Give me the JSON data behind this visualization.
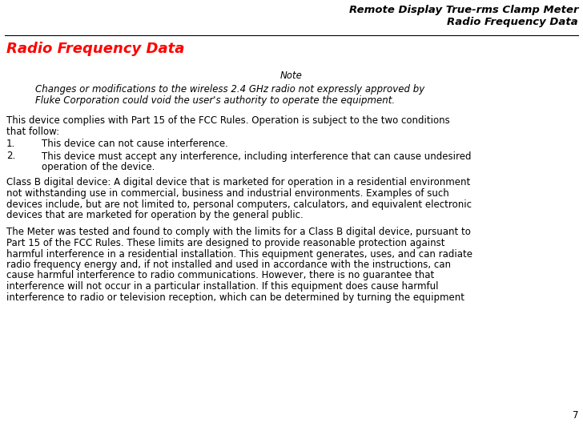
{
  "bg_color": "#ffffff",
  "header_line1": "Remote Display True-rms Clamp Meter",
  "header_line2": "Radio Frequency Data",
  "header_color": "#000000",
  "header_fontsize": 9.5,
  "section_title": "Radio Frequency Data",
  "section_title_color": "#ff0000",
  "section_title_fontsize": 13,
  "note_label": "Note",
  "note_line1": "Changes or modifications to the wireless 2.4 GHz radio not expressly approved by",
  "note_line2": "Fluke Corporation could void the user's authority to operate the equipment.",
  "body_para1_line1": "This device complies with Part 15 of the FCC Rules. Operation is subject to the two conditions",
  "body_para1_line2": "that follow:",
  "list_item1_num": "1.",
  "list_item1_text": "This device can not cause interference.",
  "list_item2_num": "2.",
  "list_item2_line1": "This device must accept any interference, including interference that can cause undesired",
  "list_item2_line2": "operation of the device.",
  "body_para2_lines": [
    "Class B digital device: A digital device that is marketed for operation in a residential environment",
    "not withstanding use in commercial, business and industrial environments. Examples of such",
    "devices include, but are not limited to, personal computers, calculators, and equivalent electronic",
    "devices that are marketed for operation by the general public."
  ],
  "body_para3_lines": [
    "The Meter was tested and found to comply with the limits for a Class B digital device, pursuant to",
    "Part 15 of the FCC Rules. These limits are designed to provide reasonable protection against",
    "harmful interference in a residential installation. This equipment generates, uses, and can radiate",
    "radio frequency energy and, if not installed and used in accordance with the instructions, can",
    "cause harmful interference to radio communications. However, there is no guarantee that",
    "interference will not occur in a particular installation. If this equipment does cause harmful",
    "interference to radio or television reception, which can be determined by turning the equipment"
  ],
  "page_number": "7",
  "body_fontsize": 8.5,
  "note_fontsize": 8.5,
  "line_color": "#000000"
}
